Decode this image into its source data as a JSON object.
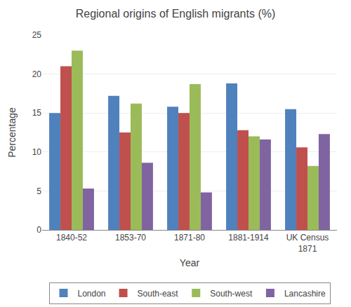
{
  "chart_data": {
    "type": "bar",
    "title": "Regional origins of English migrants (%)",
    "xlabel": "Year",
    "ylabel": "Percentage",
    "categories": [
      "1840-52",
      "1853-70",
      "1871-80",
      "1881-1914",
      "UK Census\n1871"
    ],
    "series": [
      {
        "name": "London",
        "color": "#4F81BD",
        "values": [
          15.0,
          17.2,
          15.8,
          18.8,
          15.5
        ]
      },
      {
        "name": "South-east",
        "color": "#C0504D",
        "values": [
          21.0,
          12.5,
          15.0,
          12.8,
          10.6
        ]
      },
      {
        "name": "South-west",
        "color": "#9BBB59",
        "values": [
          23.0,
          16.2,
          18.7,
          12.0,
          8.2
        ]
      },
      {
        "name": "Lancashire",
        "color": "#8064A2",
        "values": [
          5.3,
          8.6,
          4.8,
          11.6,
          12.3
        ]
      }
    ],
    "ylim": [
      0,
      25
    ],
    "yticks": [
      0,
      5,
      10,
      15,
      20,
      25
    ],
    "grid": true,
    "legend": "bottom"
  }
}
